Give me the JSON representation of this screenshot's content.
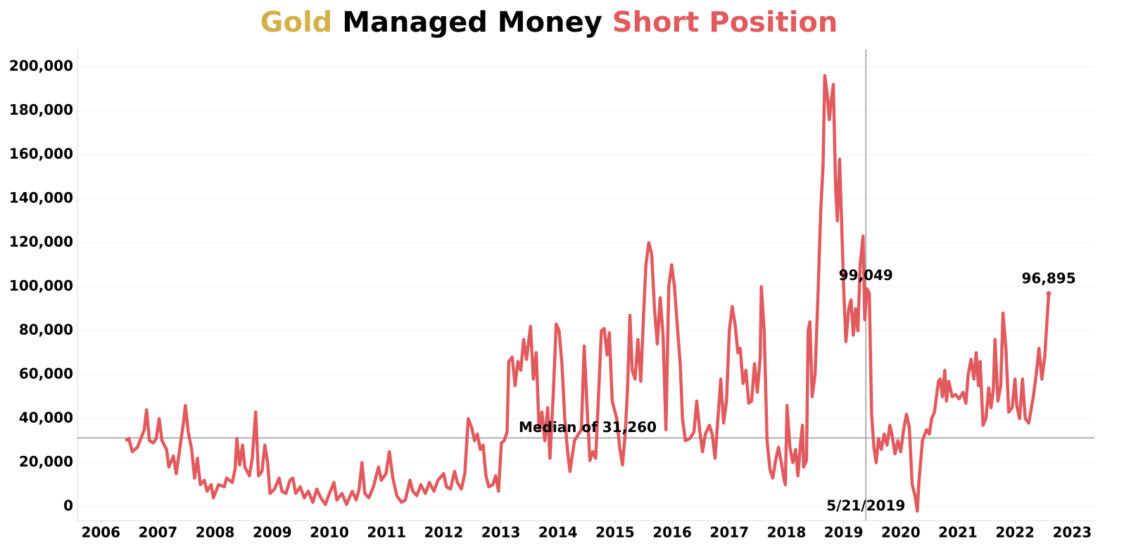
{
  "chart_data": {
    "type": "line",
    "title_parts": [
      {
        "text": "Gold",
        "color": "#d4b04a"
      },
      {
        "text": "Managed Money",
        "color": "#000000"
      },
      {
        "text": "Short Position",
        "color": "#e05a5e"
      }
    ],
    "xlim": [
      2005.59,
      2023.39
    ],
    "xticks": [
      2006,
      2007,
      2008,
      2009,
      2010,
      2011,
      2012,
      2013,
      2014,
      2015,
      2016,
      2017,
      2018,
      2019,
      2020,
      2021,
      2022,
      2023
    ],
    "ylim": [
      -6400,
      208000
    ],
    "yticks": [
      0,
      {
        "value": 20000,
        "label": "20,000"
      },
      {
        "value": 40000,
        "label": "40,000"
      },
      {
        "value": 60000,
        "label": "60,000"
      },
      {
        "value": 80000,
        "label": "80,000"
      },
      {
        "value": 100000,
        "label": "100,000"
      },
      {
        "value": 120000,
        "label": "120,000"
      },
      {
        "value": 140000,
        "label": "140,000"
      },
      {
        "value": 160000,
        "label": "160,000"
      },
      {
        "value": 180000,
        "label": "180,000"
      },
      {
        "value": 200000,
        "label": "200,000"
      }
    ],
    "grid": true,
    "median": {
      "value": 31260,
      "label": "Median of 31,260"
    },
    "marker": {
      "x": 2019.39,
      "x_label": "5/21/2019",
      "value": 99049,
      "value_label": "99,049"
    },
    "end_label": "96,895",
    "x": [
      2006.43,
      2006.49,
      2006.55,
      2006.64,
      2006.7,
      2006.76,
      2006.8,
      2006.85,
      2006.92,
      2006.97,
      2007.02,
      2007.07,
      2007.15,
      2007.19,
      2007.27,
      2007.32,
      2007.39,
      2007.44,
      2007.48,
      2007.53,
      2007.59,
      2007.64,
      2007.69,
      2007.74,
      2007.81,
      2007.86,
      2007.93,
      2007.97,
      2008.06,
      2008.16,
      2008.2,
      2008.3,
      2008.35,
      2008.38,
      2008.43,
      2008.48,
      2008.52,
      2008.6,
      2008.65,
      2008.71,
      2008.76,
      2008.82,
      2008.87,
      2008.92,
      2008.96,
      2009.04,
      2009.12,
      2009.17,
      2009.24,
      2009.31,
      2009.36,
      2009.41,
      2009.49,
      2009.56,
      2009.63,
      2009.71,
      2009.78,
      2009.85,
      2009.93,
      2010.0,
      2010.08,
      2010.13,
      2010.22,
      2010.3,
      2010.4,
      2010.47,
      2010.52,
      2010.57,
      2010.62,
      2010.69,
      2010.77,
      2010.86,
      2010.91,
      2010.99,
      2011.05,
      2011.11,
      2011.18,
      2011.26,
      2011.33,
      2011.41,
      2011.46,
      2011.53,
      2011.6,
      2011.68,
      2011.75,
      2011.83,
      2011.9,
      2012.0,
      2012.05,
      2012.12,
      2012.19,
      2012.24,
      2012.31,
      2012.37,
      2012.43,
      2012.49,
      2012.54,
      2012.59,
      2012.64,
      2012.69,
      2012.74,
      2012.79,
      2012.86,
      2012.91,
      2012.96,
      2013.01,
      2013.06,
      2013.11,
      2013.14,
      2013.2,
      2013.25,
      2013.3,
      2013.35,
      2013.4,
      2013.45,
      2013.52,
      2013.57,
      2013.62,
      2013.67,
      2013.72,
      2013.77,
      2013.82,
      2013.86,
      2013.92,
      2013.97,
      2014.02,
      2014.07,
      2014.12,
      2014.17,
      2014.21,
      2014.29,
      2014.36,
      2014.41,
      2014.46,
      2014.51,
      2014.56,
      2014.61,
      2014.66,
      2014.71,
      2014.76,
      2014.81,
      2014.86,
      2014.9,
      2014.95,
      2015.03,
      2015.08,
      2015.13,
      2015.18,
      2015.22,
      2015.26,
      2015.3,
      2015.35,
      2015.4,
      2015.45,
      2015.5,
      2015.54,
      2015.59,
      2015.64,
      2015.69,
      2015.74,
      2015.79,
      2015.84,
      2015.89,
      2015.94,
      2015.99,
      2016.04,
      2016.09,
      2016.14,
      2016.18,
      2016.23,
      2016.31,
      2016.38,
      2016.43,
      2016.48,
      2016.53,
      2016.58,
      2016.65,
      2016.7,
      2016.75,
      2016.8,
      2016.85,
      2016.9,
      2016.95,
      2017.0,
      2017.05,
      2017.1,
      2017.15,
      2017.19,
      2017.24,
      2017.29,
      2017.34,
      2017.39,
      2017.44,
      2017.49,
      2017.54,
      2017.56,
      2017.61,
      2017.66,
      2017.71,
      2017.76,
      2017.81,
      2017.86,
      2017.91,
      2017.96,
      2017.98,
      2018.01,
      2018.06,
      2018.11,
      2018.16,
      2018.2,
      2018.25,
      2018.28,
      2018.3,
      2018.35,
      2018.38,
      2018.41,
      2018.45,
      2018.5,
      2018.55,
      2018.6,
      2018.64,
      2018.67,
      2018.71,
      2018.75,
      2018.78,
      2018.82,
      2018.86,
      2018.89,
      2018.93,
      2018.97,
      2019.0,
      2019.04,
      2019.09,
      2019.13,
      2019.17,
      2019.21,
      2019.25,
      2019.29,
      2019.34,
      2019.37,
      2019.41,
      2019.45,
      2019.49,
      2019.53,
      2019.57,
      2019.61,
      2019.66,
      2019.71,
      2019.76,
      2019.81,
      2019.85,
      2019.9,
      2019.95,
      2020.0,
      2020.05,
      2020.1,
      2020.15,
      2020.2,
      2020.25,
      2020.29,
      2020.32,
      2020.38,
      2020.45,
      2020.5,
      2020.54,
      2020.59,
      2020.66,
      2020.69,
      2020.73,
      2020.77,
      2020.8,
      2020.84,
      2020.9,
      2020.96,
      2021.02,
      2021.09,
      2021.14,
      2021.18,
      2021.23,
      2021.28,
      2021.32,
      2021.36,
      2021.39,
      2021.44,
      2021.49,
      2021.54,
      2021.58,
      2021.62,
      2021.65,
      2021.7,
      2021.75,
      2021.79,
      2021.84,
      2021.89,
      2021.95,
      2022.0,
      2022.03,
      2022.08,
      2022.13,
      2022.18,
      2022.24,
      2022.32,
      2022.37,
      2022.42,
      2022.47,
      2022.52,
      2022.59
    ],
    "series": [
      {
        "color": "#e05a5e",
        "values": [
          30000,
          31000,
          25000,
          27000,
          31000,
          35000,
          44000,
          30000,
          29000,
          31000,
          40000,
          30000,
          26000,
          18000,
          23000,
          15000,
          28000,
          37000,
          46000,
          34000,
          26000,
          13000,
          22000,
          10000,
          12000,
          7000,
          10000,
          4000,
          10000,
          9000,
          13000,
          11000,
          17000,
          31000,
          19000,
          28000,
          18000,
          14000,
          22000,
          43000,
          14000,
          16000,
          28000,
          20000,
          6000,
          8000,
          13000,
          7000,
          6000,
          12000,
          13000,
          6000,
          9000,
          4000,
          7000,
          2000,
          8000,
          4000,
          1000,
          6000,
          11000,
          3000,
          6000,
          1000,
          7000,
          3000,
          8000,
          20000,
          6000,
          4000,
          9000,
          18000,
          12000,
          15000,
          25000,
          13000,
          5000,
          2000,
          3000,
          12000,
          7000,
          5000,
          10000,
          6000,
          11000,
          7000,
          12000,
          15000,
          9000,
          8000,
          16000,
          11000,
          8000,
          15000,
          40000,
          36000,
          30000,
          33000,
          26000,
          28000,
          14000,
          9000,
          10000,
          14000,
          7000,
          29000,
          30000,
          34000,
          66000,
          68000,
          55000,
          66000,
          62000,
          76000,
          67000,
          82000,
          58000,
          70000,
          35000,
          43000,
          30000,
          45000,
          22000,
          52000,
          83000,
          80000,
          65000,
          40000,
          25000,
          16000,
          30000,
          33000,
          35000,
          73000,
          45000,
          21000,
          25000,
          22000,
          50000,
          80000,
          81000,
          69000,
          79000,
          48000,
          40000,
          27000,
          19000,
          34000,
          55000,
          87000,
          62000,
          58000,
          76000,
          57000,
          88000,
          110000,
          120000,
          115000,
          90000,
          74000,
          95000,
          78000,
          35000,
          100000,
          110000,
          100000,
          82000,
          65000,
          40000,
          30000,
          31000,
          34000,
          48000,
          35000,
          25000,
          33000,
          37000,
          33000,
          22000,
          40000,
          58000,
          38000,
          48000,
          80000,
          91000,
          83000,
          70000,
          72000,
          56000,
          62000,
          47000,
          48000,
          65000,
          52000,
          68000,
          100000,
          80000,
          30000,
          17000,
          13000,
          21000,
          27000,
          20000,
          12000,
          10000,
          46000,
          27000,
          20000,
          26000,
          14000,
          30000,
          37000,
          18000,
          21000,
          80000,
          84000,
          50000,
          60000,
          95000,
          135000,
          155000,
          196000,
          188000,
          176000,
          184000,
          192000,
          145000,
          130000,
          158000,
          125000,
          100000,
          75000,
          90000,
          94000,
          78000,
          90000,
          80000,
          110000,
          123000,
          85000,
          99049,
          97000,
          42000,
          27000,
          20000,
          31000,
          26000,
          33000,
          28000,
          37000,
          32000,
          24000,
          30000,
          25000,
          35000,
          42000,
          36000,
          10000,
          5000,
          -2000,
          12000,
          30000,
          35000,
          33000,
          40000,
          43000,
          57000,
          58000,
          50000,
          62000,
          48000,
          57000,
          50000,
          51000,
          49000,
          52000,
          47000,
          60000,
          67000,
          58000,
          70000,
          55000,
          66000,
          37000,
          40000,
          54000,
          45000,
          53000,
          76000,
          48000,
          55000,
          88000,
          72000,
          43000,
          45000,
          58000,
          46000,
          40000,
          58000,
          40000,
          38000,
          50000,
          60000,
          72000,
          58000,
          68000,
          96895
        ]
      }
    ]
  }
}
